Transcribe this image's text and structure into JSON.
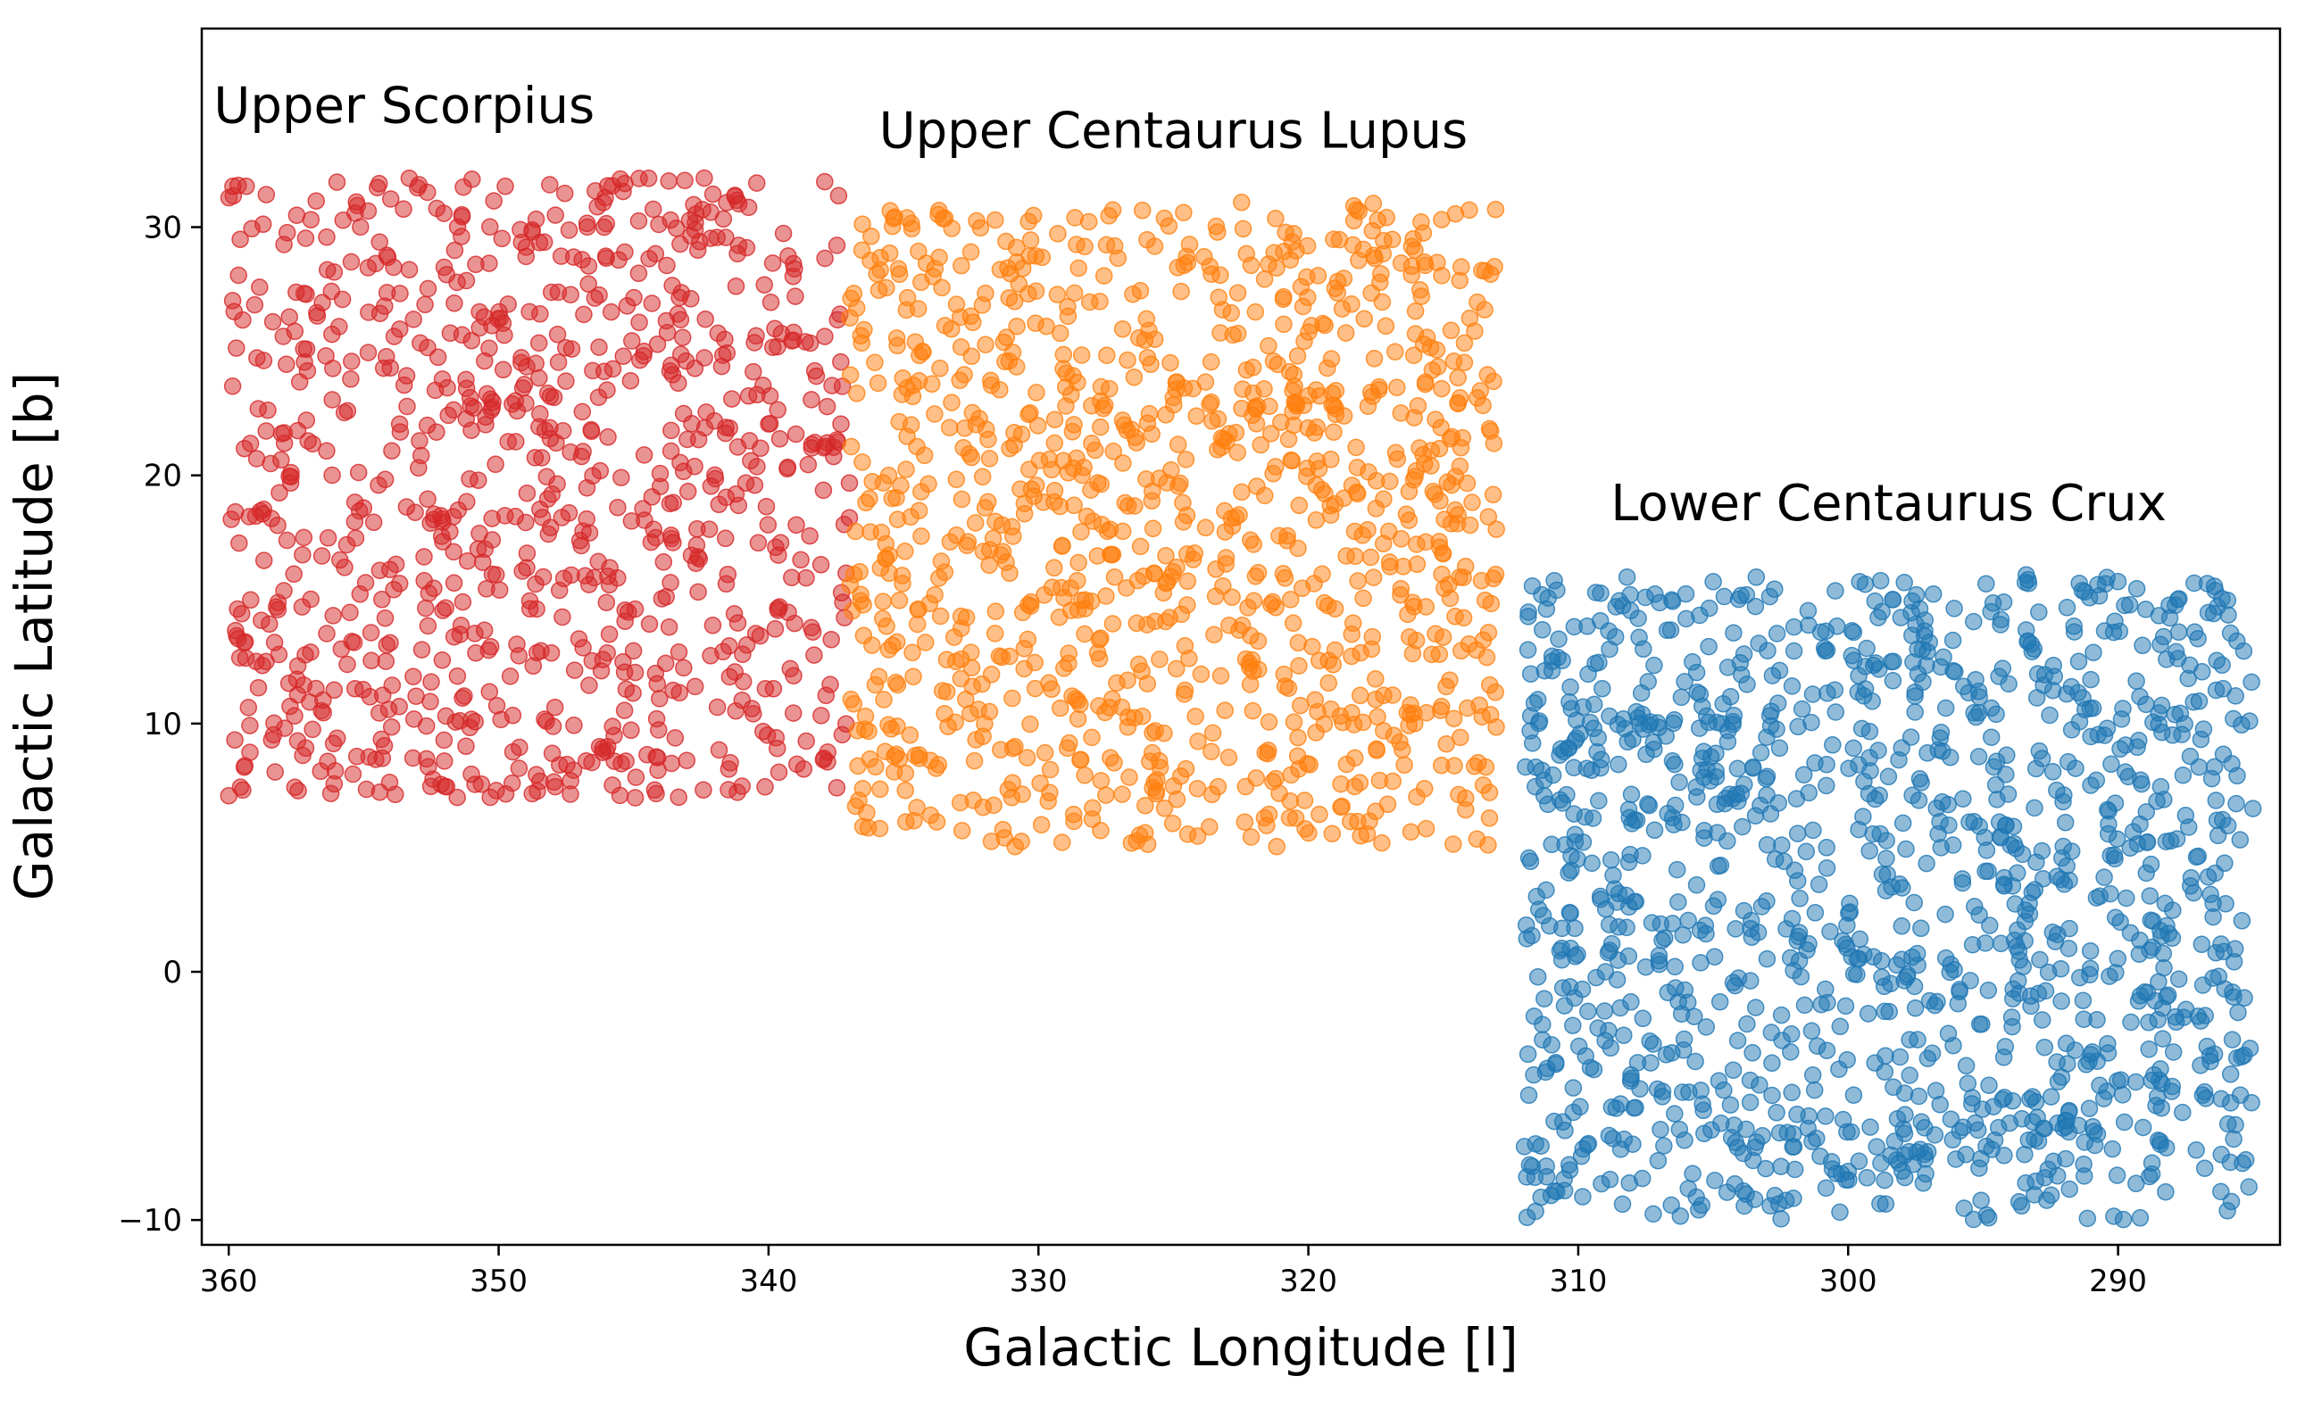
{
  "chart_data": {
    "type": "scatter",
    "xlabel": "Galactic Longitude [l]",
    "ylabel": "Galactic Latitude [b]",
    "xlim": [
      361,
      284
    ],
    "ylim": [
      -11,
      38
    ],
    "x_inverted": true,
    "xticks": [
      360,
      350,
      340,
      330,
      320,
      310,
      300,
      290
    ],
    "yticks": [
      30,
      20,
      10,
      0,
      -10
    ],
    "xtick_labels": [
      "360",
      "350",
      "340",
      "330",
      "320",
      "310",
      "300",
      "290"
    ],
    "ytick_labels": [
      "30",
      "20",
      "10",
      "0",
      "−10"
    ],
    "grid": false,
    "legend": "none",
    "point_alpha": 0.5,
    "series": [
      {
        "key": "us",
        "color": "#d62728",
        "l_range": [
          360,
          337
        ],
        "b_range": [
          7,
          32
        ],
        "approx_count": 900
      },
      {
        "key": "ucl",
        "color": "#ff7f0e",
        "l_range": [
          337,
          313
        ],
        "b_range": [
          5,
          31
        ],
        "approx_count": 1100
      },
      {
        "key": "lcc",
        "color": "#1f77b4",
        "l_range": [
          312,
          285
        ],
        "b_range": [
          -10,
          16
        ],
        "approx_count": 1300
      }
    ],
    "annotations": [
      {
        "text": "Upper Scorpius",
        "l": 353.5,
        "b": 34.2
      },
      {
        "text": "Upper Centaurus Lupus",
        "l": 325,
        "b": 33.2
      },
      {
        "text": "Lower Centaurus Crux",
        "l": 298.5,
        "b": 18.2
      }
    ]
  }
}
